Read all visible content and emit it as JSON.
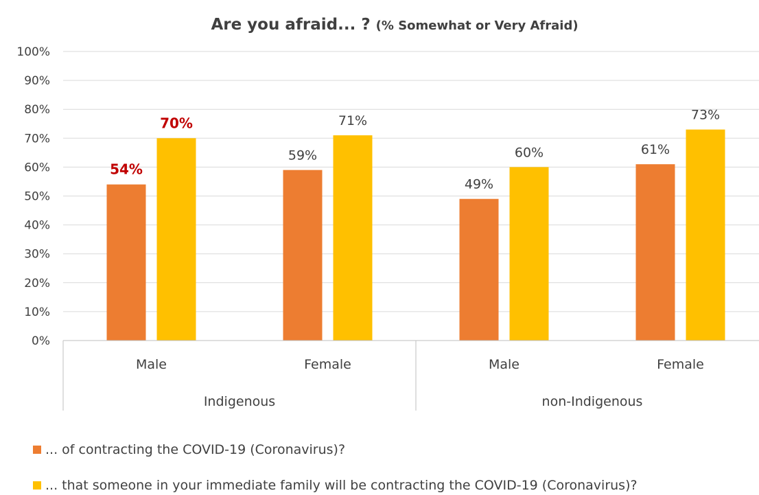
{
  "chart_data": {
    "type": "bar",
    "title": "Are you afraid... ?",
    "subtitle": "(% Somewhat or Very Afraid)",
    "groups": [
      {
        "label": "Indigenous",
        "categories": [
          "Male",
          "Female"
        ]
      },
      {
        "label": "non-Indigenous",
        "categories": [
          "Male",
          "Female"
        ]
      }
    ],
    "categories": [
      "Male",
      "Female",
      "Male",
      "Female"
    ],
    "series": [
      {
        "name": "... of contracting the COVID-19 (Coronavirus)?",
        "color": "#ed7d31",
        "values": [
          54,
          59,
          49,
          61
        ],
        "labels": [
          "54%",
          "59%",
          "49%",
          "61%"
        ]
      },
      {
        "name": "... that someone in your immediate family will be contracting the COVID-19 (Coronavirus)?",
        "color": "#ffc000",
        "values": [
          70,
          71,
          60,
          73
        ],
        "labels": [
          "70%",
          "71%",
          "60%",
          "73%"
        ]
      }
    ],
    "highlighted_labels": [
      [
        0,
        0
      ],
      [
        1,
        0
      ]
    ],
    "highlight_color": "#c00000",
    "yticks": [
      "0%",
      "10%",
      "20%",
      "30%",
      "40%",
      "50%",
      "60%",
      "70%",
      "80%",
      "90%",
      "100%"
    ],
    "ylim": [
      0,
      100
    ],
    "grid": true,
    "legend_position": "bottom"
  }
}
